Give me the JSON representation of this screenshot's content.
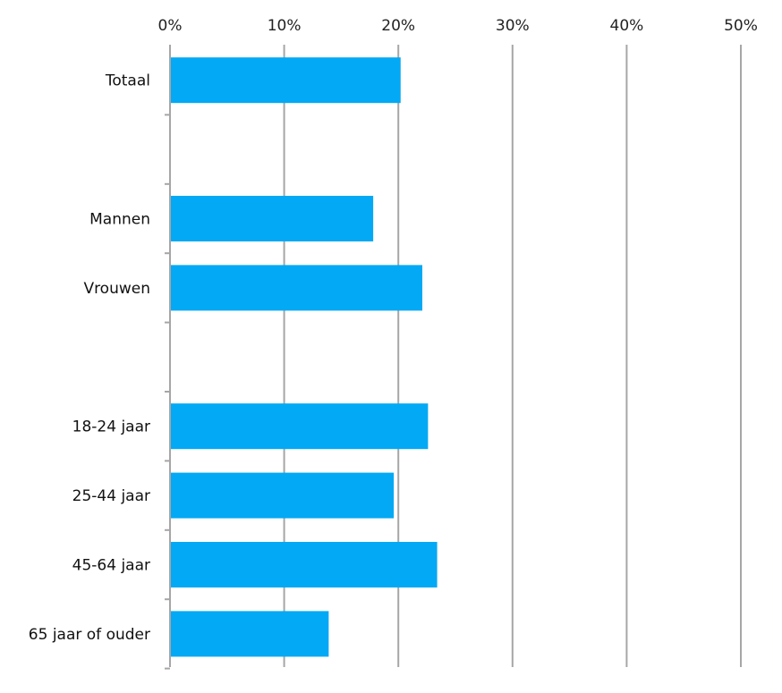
{
  "chart_data": {
    "type": "bar",
    "orientation": "horizontal",
    "title": "",
    "xlabel": "",
    "ylabel": "",
    "xlim": [
      0,
      50
    ],
    "x_ticks": [
      "0%",
      "10%",
      "20%",
      "30%",
      "40%",
      "50%"
    ],
    "x_axis_position": "top",
    "grid": true,
    "bar_color": "#03a9f4",
    "rows": [
      {
        "label": "Totaal",
        "value": 20.2
      },
      {
        "label": "",
        "value": null
      },
      {
        "label": "Mannen",
        "value": 17.8
      },
      {
        "label": "Vrouwen",
        "value": 22.1
      },
      {
        "label": "",
        "value": null
      },
      {
        "label": "18-24 jaar",
        "value": 22.6
      },
      {
        "label": "25-44 jaar",
        "value": 19.6
      },
      {
        "label": "45-64 jaar",
        "value": 23.4
      },
      {
        "label": "65 jaar of ouder",
        "value": 13.9
      }
    ]
  }
}
